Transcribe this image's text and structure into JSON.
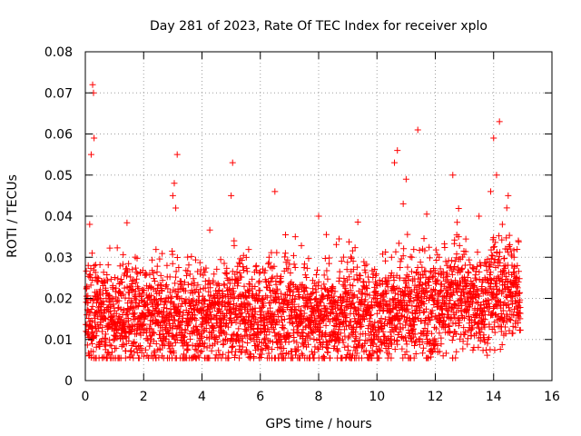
{
  "chart_data": {
    "type": "scatter",
    "title": "Day 281 of 2023, Rate Of TEC Index for receiver xplo",
    "xlabel": "GPS time / hours",
    "ylabel": "ROTI / TECUs",
    "xlim": [
      0,
      16
    ],
    "ylim": [
      0,
      0.08
    ],
    "grid": true,
    "marker": "+",
    "color": "#ff0000",
    "x_ticks": [
      0,
      2,
      4,
      6,
      8,
      10,
      12,
      14,
      16
    ],
    "x_tick_labels": [
      "0",
      "2",
      "4",
      "6",
      "8",
      "10",
      "12",
      "14",
      "16"
    ],
    "y_ticks": [
      0,
      0.01,
      0.02,
      0.03,
      0.04,
      0.05,
      0.06,
      0.07,
      0.08
    ],
    "y_tick_labels": [
      "0",
      "0.01",
      "0.02",
      "0.03",
      "0.04",
      "0.05",
      "0.06",
      "0.07",
      "0.08"
    ],
    "series": [
      {
        "name": "ROTI",
        "x": [
          0.05,
          0.1,
          0.15,
          0.2,
          0.25,
          0.28,
          0.3,
          0.35,
          0.4,
          0.5,
          0.6,
          0.7,
          0.8,
          0.9,
          1.0,
          1.2,
          1.3,
          1.4,
          1.5,
          1.6,
          1.8,
          2.0,
          2.2,
          2.4,
          2.6,
          2.8,
          3.0,
          3.05,
          3.1,
          3.15,
          3.3,
          3.5,
          3.7,
          4.0,
          4.3,
          4.6,
          4.9,
          5.0,
          5.05,
          5.1,
          5.3,
          5.5,
          5.8,
          6.0,
          6.3,
          6.5,
          6.8,
          7.0,
          7.2,
          7.5,
          7.8,
          8.0,
          8.3,
          8.6,
          9.0,
          9.2,
          9.5,
          9.8,
          10.0,
          10.3,
          10.5,
          10.6,
          10.7,
          10.9,
          11.0,
          11.2,
          11.4,
          11.5,
          11.7,
          12.0,
          12.2,
          12.4,
          12.6,
          12.8,
          13.0,
          13.3,
          13.5,
          13.7,
          13.9,
          14.0,
          14.1,
          14.2,
          14.3,
          14.5,
          14.7,
          14.85
        ],
        "y": [
          0.016,
          0.028,
          0.038,
          0.055,
          0.072,
          0.07,
          0.059,
          0.025,
          0.012,
          0.018,
          0.015,
          0.022,
          0.013,
          0.02,
          0.017,
          0.014,
          0.021,
          0.016,
          0.012,
          0.019,
          0.015,
          0.018,
          0.023,
          0.014,
          0.02,
          0.028,
          0.045,
          0.048,
          0.042,
          0.055,
          0.02,
          0.016,
          0.012,
          0.019,
          0.015,
          0.022,
          0.013,
          0.045,
          0.053,
          0.034,
          0.018,
          0.014,
          0.02,
          0.016,
          0.03,
          0.046,
          0.019,
          0.015,
          0.035,
          0.02,
          0.017,
          0.04,
          0.022,
          0.015,
          0.018,
          0.013,
          0.021,
          0.016,
          0.02,
          0.025,
          0.03,
          0.053,
          0.056,
          0.043,
          0.049,
          0.03,
          0.061,
          0.025,
          0.02,
          0.022,
          0.018,
          0.028,
          0.05,
          0.035,
          0.021,
          0.016,
          0.04,
          0.025,
          0.046,
          0.059,
          0.05,
          0.063,
          0.038,
          0.045,
          0.03,
          0.024
        ]
      }
    ]
  }
}
